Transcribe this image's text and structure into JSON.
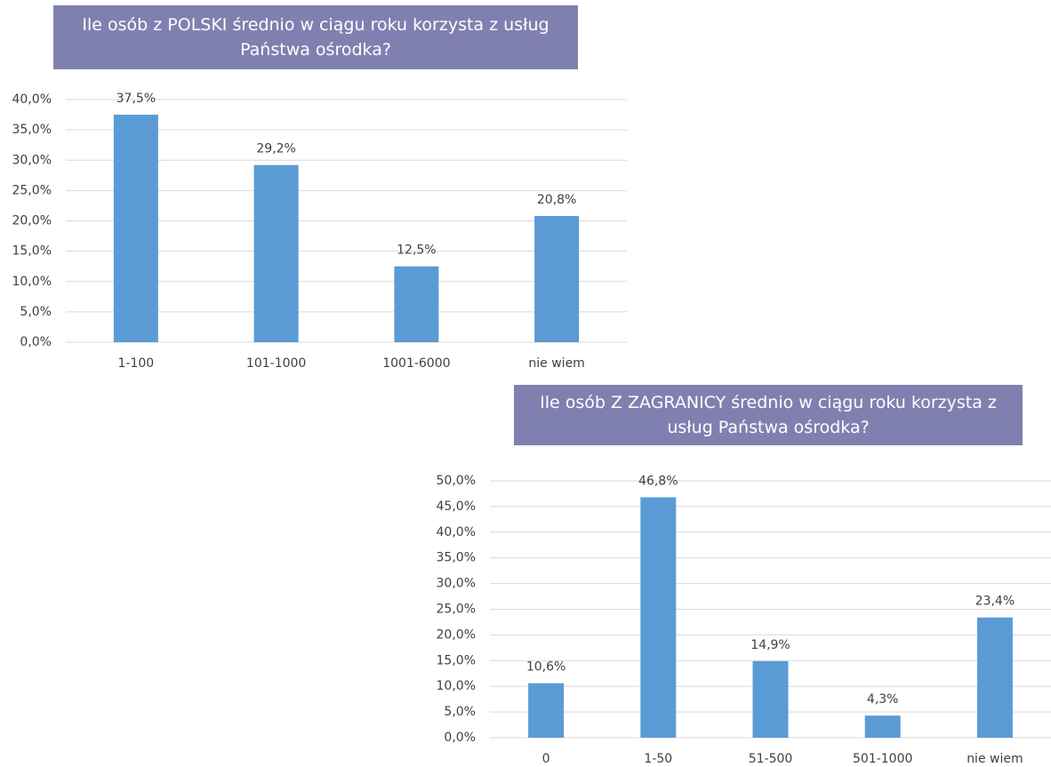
{
  "chart_data": [
    {
      "type": "bar",
      "title": "Ile osób z POLSKI średnio w ciągu roku korzysta z usług Państwa ośrodka?",
      "categories": [
        "1-100",
        "101-1000",
        "1001-6000",
        "nie wiem"
      ],
      "values": [
        37.5,
        29.2,
        12.5,
        20.8
      ],
      "value_labels": [
        "37,5%",
        "29,2%",
        "12,5%",
        "20,8%"
      ],
      "color": "#5b9bd5",
      "ylim": [
        0,
        40
      ],
      "yticks": [
        {
          "value": 0,
          "label": "0,0%"
        },
        {
          "value": 5,
          "label": "5,0%"
        },
        {
          "value": 10,
          "label": "10,0%"
        },
        {
          "value": 15,
          "label": "15,0%"
        },
        {
          "value": 20,
          "label": "20,0%"
        },
        {
          "value": 25,
          "label": "25,0%"
        },
        {
          "value": 30,
          "label": "30,0%"
        },
        {
          "value": 35,
          "label": "35,0%"
        },
        {
          "value": 40,
          "label": "40,0%"
        }
      ],
      "grid": true
    },
    {
      "type": "bar",
      "title": "Ile osób Z ZAGRANICY średnio w ciągu roku korzysta z usług Państwa ośrodka?",
      "categories": [
        "0",
        "1-50",
        "51-500",
        "501-1000",
        "nie wiem"
      ],
      "values": [
        10.6,
        46.8,
        14.9,
        4.3,
        23.4
      ],
      "value_labels": [
        "10,6%",
        "46,8%",
        "14,9%",
        "4,3%",
        "23,4%"
      ],
      "color": "#5b9bd5",
      "ylim": [
        0,
        50
      ],
      "yticks": [
        {
          "value": 0,
          "label": "0,0%"
        },
        {
          "value": 5,
          "label": "5,0%"
        },
        {
          "value": 10,
          "label": "10,0%"
        },
        {
          "value": 15,
          "label": "15,0%"
        },
        {
          "value": 20,
          "label": "20,0%"
        },
        {
          "value": 25,
          "label": "25,0%"
        },
        {
          "value": 30,
          "label": "30,0%"
        },
        {
          "value": 35,
          "label": "35,0%"
        },
        {
          "value": 40,
          "label": "40,0%"
        },
        {
          "value": 45,
          "label": "45,0%"
        },
        {
          "value": 50,
          "label": "50,0%"
        }
      ],
      "grid": true
    }
  ]
}
